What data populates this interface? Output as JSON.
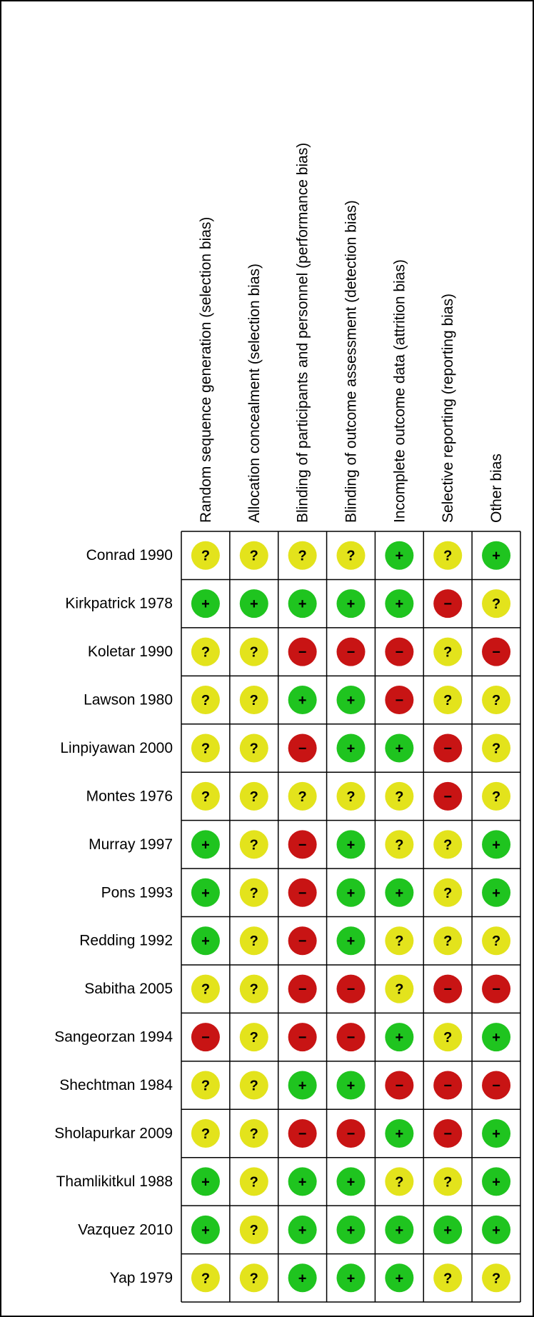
{
  "domains": [
    "Random sequence generation (selection bias)",
    "Allocation concealment (selection bias)",
    "Blinding of participants and personnel (performance bias)",
    "Blinding of outcome assessment (detection bias)",
    "Incomplete outcome data (attrition bias)",
    "Selective reporting (reporting bias)",
    "Other bias"
  ],
  "colors": {
    "+": "#1fc41f",
    "−": "#c81414",
    "?": "#e3e31c"
  },
  "studies": [
    {
      "name": "Conrad 1990",
      "judgements": [
        "?",
        "?",
        "?",
        "?",
        "+",
        "?",
        "+"
      ]
    },
    {
      "name": "Kirkpatrick 1978",
      "judgements": [
        "+",
        "+",
        "+",
        "+",
        "+",
        "−",
        "?"
      ]
    },
    {
      "name": "Koletar 1990",
      "judgements": [
        "?",
        "?",
        "−",
        "−",
        "−",
        "?",
        "−"
      ]
    },
    {
      "name": "Lawson 1980",
      "judgements": [
        "?",
        "?",
        "+",
        "+",
        "−",
        "?",
        "?"
      ]
    },
    {
      "name": "Linpiyawan 2000",
      "judgements": [
        "?",
        "?",
        "−",
        "+",
        "+",
        "−",
        "?"
      ]
    },
    {
      "name": "Montes 1976",
      "judgements": [
        "?",
        "?",
        "?",
        "?",
        "?",
        "−",
        "?"
      ]
    },
    {
      "name": "Murray 1997",
      "judgements": [
        "+",
        "?",
        "−",
        "+",
        "?",
        "?",
        "+"
      ]
    },
    {
      "name": "Pons 1993",
      "judgements": [
        "+",
        "?",
        "−",
        "+",
        "+",
        "?",
        "+"
      ]
    },
    {
      "name": "Redding 1992",
      "judgements": [
        "+",
        "?",
        "−",
        "+",
        "?",
        "?",
        "?"
      ]
    },
    {
      "name": "Sabitha 2005",
      "judgements": [
        "?",
        "?",
        "−",
        "−",
        "?",
        "−",
        "−"
      ]
    },
    {
      "name": "Sangeorzan 1994",
      "judgements": [
        "−",
        "?",
        "−",
        "−",
        "+",
        "?",
        "+"
      ]
    },
    {
      "name": "Shechtman 1984",
      "judgements": [
        "?",
        "?",
        "+",
        "+",
        "−",
        "−",
        "−"
      ]
    },
    {
      "name": "Sholapurkar 2009",
      "judgements": [
        "?",
        "?",
        "−",
        "−",
        "+",
        "−",
        "+"
      ]
    },
    {
      "name": "Thamlikitkul 1988",
      "judgements": [
        "+",
        "?",
        "+",
        "+",
        "?",
        "?",
        "+"
      ]
    },
    {
      "name": "Vazquez 2010",
      "judgements": [
        "+",
        "?",
        "+",
        "+",
        "+",
        "+",
        "+"
      ]
    },
    {
      "name": "Yap 1979",
      "judgements": [
        "?",
        "?",
        "+",
        "+",
        "+",
        "?",
        "?"
      ]
    }
  ]
}
